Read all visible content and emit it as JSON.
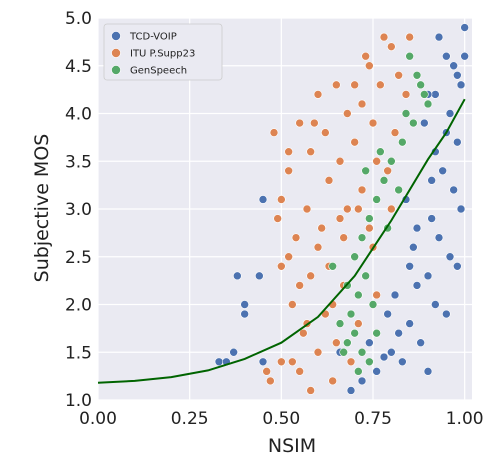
{
  "chart_data": {
    "type": "scatter",
    "title": "",
    "xlabel": "NSIM",
    "ylabel": "Subjective MOS",
    "xlim": [
      0.0,
      1.02
    ],
    "ylim": [
      1.0,
      5.0
    ],
    "xticks": [
      "0.00",
      "0.25",
      "0.50",
      "0.75",
      "1.00"
    ],
    "yticks": [
      "1.0",
      "1.5",
      "2.0",
      "2.5",
      "3.0",
      "3.5",
      "4.0",
      "4.5",
      "5.0"
    ],
    "grid": true,
    "legend_position": "top-left",
    "colors": {
      "plot_background": "#eaeaf2",
      "grid": "#ffffff",
      "fit_curve": "#006400"
    },
    "series": [
      {
        "name": "TCD-VOIP",
        "color": "#4c72b0",
        "points": [
          [
            0.93,
            4.8
          ],
          [
            0.95,
            4.6
          ],
          [
            0.97,
            4.5
          ],
          [
            0.99,
            4.3
          ],
          [
            0.96,
            4.0
          ],
          [
            0.98,
            3.7
          ],
          [
            0.92,
            3.6
          ],
          [
            0.94,
            3.4
          ],
          [
            0.97,
            3.2
          ],
          [
            0.99,
            3.0
          ],
          [
            0.91,
            2.9
          ],
          [
            0.93,
            2.7
          ],
          [
            0.96,
            2.5
          ],
          [
            0.98,
            2.4
          ],
          [
            0.9,
            2.3
          ],
          [
            0.87,
            2.2
          ],
          [
            0.92,
            2.0
          ],
          [
            0.95,
            1.9
          ],
          [
            0.85,
            1.8
          ],
          [
            0.82,
            1.7
          ],
          [
            0.88,
            1.6
          ],
          [
            0.8,
            1.5
          ],
          [
            0.78,
            1.45
          ],
          [
            0.83,
            1.4
          ],
          [
            0.76,
            1.3
          ],
          [
            0.9,
            1.3
          ],
          [
            0.86,
            2.6
          ],
          [
            0.84,
            3.1
          ],
          [
            0.89,
            3.9
          ],
          [
            1.0,
            4.9
          ],
          [
            0.98,
            4.4
          ],
          [
            0.95,
            3.8
          ],
          [
            0.91,
            3.3
          ],
          [
            0.87,
            2.8
          ],
          [
            0.85,
            2.4
          ],
          [
            0.81,
            2.1
          ],
          [
            0.79,
            1.9
          ],
          [
            0.74,
            1.6
          ],
          [
            0.38,
            2.3
          ],
          [
            0.4,
            2.0
          ],
          [
            0.4,
            1.9
          ],
          [
            0.37,
            1.5
          ],
          [
            0.33,
            1.4
          ],
          [
            0.35,
            1.4
          ],
          [
            0.44,
            2.3
          ],
          [
            0.45,
            3.1
          ],
          [
            0.45,
            1.4
          ],
          [
            0.66,
            1.5
          ],
          [
            0.72,
            1.2
          ],
          [
            0.69,
            1.1
          ],
          [
            0.92,
            4.2
          ],
          [
            1.0,
            4.6
          ],
          [
            0.9,
            4.2
          ]
        ]
      },
      {
        "name": "ITU P.Supp23",
        "color": "#dd8452",
        "points": [
          [
            0.78,
            4.8
          ],
          [
            0.8,
            4.7
          ],
          [
            0.85,
            4.8
          ],
          [
            0.74,
            4.5
          ],
          [
            0.82,
            4.4
          ],
          [
            0.7,
            4.3
          ],
          [
            0.65,
            4.3
          ],
          [
            0.72,
            4.1
          ],
          [
            0.6,
            4.2
          ],
          [
            0.68,
            4.0
          ],
          [
            0.75,
            3.9
          ],
          [
            0.62,
            3.8
          ],
          [
            0.55,
            3.9
          ],
          [
            0.48,
            3.8
          ],
          [
            0.58,
            3.6
          ],
          [
            0.7,
            3.7
          ],
          [
            0.76,
            3.5
          ],
          [
            0.52,
            3.4
          ],
          [
            0.63,
            3.3
          ],
          [
            0.72,
            3.2
          ],
          [
            0.5,
            3.1
          ],
          [
            0.57,
            3.0
          ],
          [
            0.66,
            2.9
          ],
          [
            0.74,
            2.8
          ],
          [
            0.54,
            2.7
          ],
          [
            0.6,
            2.6
          ],
          [
            0.7,
            2.5
          ],
          [
            0.5,
            2.4
          ],
          [
            0.58,
            2.3
          ],
          [
            0.67,
            2.2
          ],
          [
            0.76,
            2.1
          ],
          [
            0.53,
            2.0
          ],
          [
            0.62,
            1.9
          ],
          [
            0.71,
            1.8
          ],
          [
            0.56,
            1.7
          ],
          [
            0.65,
            1.6
          ],
          [
            0.6,
            1.5
          ],
          [
            0.53,
            1.4
          ],
          [
            0.55,
            1.3
          ],
          [
            0.64,
            1.2
          ],
          [
            0.47,
            1.2
          ],
          [
            0.58,
            1.1
          ],
          [
            0.5,
            1.4
          ],
          [
            0.52,
            2.5
          ],
          [
            0.49,
            2.9
          ],
          [
            0.68,
            3.0
          ],
          [
            0.79,
            3.4
          ],
          [
            0.81,
            3.8
          ],
          [
            0.84,
            4.2
          ],
          [
            0.73,
            4.6
          ],
          [
            0.66,
            3.5
          ],
          [
            0.61,
            2.8
          ],
          [
            0.69,
            1.4
          ],
          [
            0.57,
            1.8
          ],
          [
            0.63,
            2.4
          ],
          [
            0.75,
            2.6
          ],
          [
            0.8,
            3.0
          ],
          [
            0.52,
            3.6
          ],
          [
            0.46,
            1.3
          ],
          [
            0.59,
            3.9
          ],
          [
            0.77,
            4.3
          ],
          [
            0.71,
            3.0
          ],
          [
            0.64,
            2.0
          ],
          [
            0.55,
            2.2
          ],
          [
            0.67,
            2.7
          ]
        ]
      },
      {
        "name": "GenSpeech",
        "color": "#55a868",
        "points": [
          [
            0.85,
            4.6
          ],
          [
            0.87,
            4.4
          ],
          [
            0.89,
            4.2
          ],
          [
            0.86,
            3.9
          ],
          [
            0.83,
            3.7
          ],
          [
            0.8,
            3.5
          ],
          [
            0.78,
            3.3
          ],
          [
            0.76,
            3.1
          ],
          [
            0.74,
            2.9
          ],
          [
            0.72,
            2.7
          ],
          [
            0.7,
            2.5
          ],
          [
            0.73,
            2.3
          ],
          [
            0.71,
            2.1
          ],
          [
            0.69,
            1.9
          ],
          [
            0.7,
            1.7
          ],
          [
            0.68,
            1.6
          ],
          [
            0.72,
            1.5
          ],
          [
            0.74,
            1.4
          ],
          [
            0.71,
            1.3
          ],
          [
            0.66,
            1.8
          ],
          [
            0.64,
            2.4
          ],
          [
            0.75,
            2.0
          ],
          [
            0.79,
            2.8
          ],
          [
            0.82,
            3.2
          ],
          [
            0.84,
            4.0
          ],
          [
            0.88,
            4.3
          ],
          [
            0.9,
            4.1
          ],
          [
            0.77,
            3.6
          ],
          [
            0.73,
            3.4
          ],
          [
            0.68,
            2.2
          ],
          [
            0.76,
            1.7
          ],
          [
            0.67,
            1.5
          ]
        ]
      }
    ],
    "fit_curve": {
      "name": "",
      "color": "#006400",
      "points": [
        [
          0.0,
          1.18
        ],
        [
          0.1,
          1.2
        ],
        [
          0.2,
          1.24
        ],
        [
          0.3,
          1.31
        ],
        [
          0.4,
          1.43
        ],
        [
          0.5,
          1.6
        ],
        [
          0.6,
          1.87
        ],
        [
          0.7,
          2.3
        ],
        [
          0.8,
          2.88
        ],
        [
          0.9,
          3.52
        ],
        [
          0.95,
          3.8
        ],
        [
          1.0,
          4.15
        ]
      ]
    }
  }
}
